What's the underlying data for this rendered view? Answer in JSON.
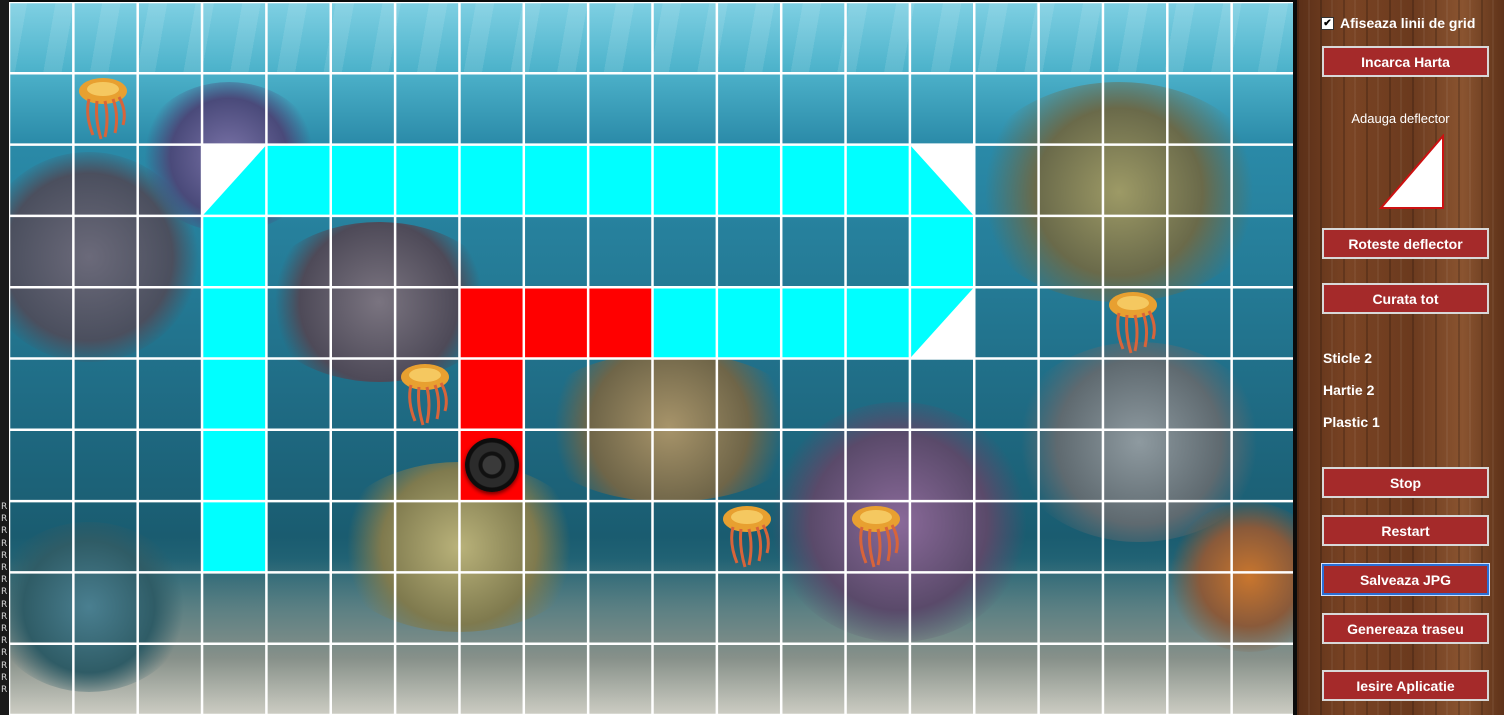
{
  "side_markers": [
    "R",
    "R",
    "R",
    "R",
    "R",
    "R",
    "R",
    "R",
    "R",
    "R",
    "R",
    "R",
    "R",
    "R",
    "R",
    "R"
  ],
  "board": {
    "grid_visible": true,
    "cols": 20,
    "rows": 10,
    "cells": [
      {
        "c": 3,
        "r": 2,
        "kind": "cyan-tri-br"
      },
      {
        "c": 4,
        "r": 2,
        "kind": "cyan"
      },
      {
        "c": 5,
        "r": 2,
        "kind": "cyan"
      },
      {
        "c": 6,
        "r": 2,
        "kind": "cyan"
      },
      {
        "c": 7,
        "r": 2,
        "kind": "cyan"
      },
      {
        "c": 8,
        "r": 2,
        "kind": "cyan"
      },
      {
        "c": 9,
        "r": 2,
        "kind": "cyan"
      },
      {
        "c": 10,
        "r": 2,
        "kind": "cyan"
      },
      {
        "c": 11,
        "r": 2,
        "kind": "cyan"
      },
      {
        "c": 12,
        "r": 2,
        "kind": "cyan"
      },
      {
        "c": 13,
        "r": 2,
        "kind": "cyan"
      },
      {
        "c": 14,
        "r": 2,
        "kind": "cyan-tri-bl"
      },
      {
        "c": 3,
        "r": 3,
        "kind": "cyan"
      },
      {
        "c": 14,
        "r": 3,
        "kind": "cyan"
      },
      {
        "c": 3,
        "r": 4,
        "kind": "cyan"
      },
      {
        "c": 7,
        "r": 4,
        "kind": "red"
      },
      {
        "c": 8,
        "r": 4,
        "kind": "red"
      },
      {
        "c": 9,
        "r": 4,
        "kind": "red"
      },
      {
        "c": 10,
        "r": 4,
        "kind": "cyan"
      },
      {
        "c": 11,
        "r": 4,
        "kind": "cyan"
      },
      {
        "c": 12,
        "r": 4,
        "kind": "cyan"
      },
      {
        "c": 13,
        "r": 4,
        "kind": "cyan"
      },
      {
        "c": 14,
        "r": 4,
        "kind": "cyan-tri-tl"
      },
      {
        "c": 3,
        "r": 5,
        "kind": "cyan"
      },
      {
        "c": 7,
        "r": 5,
        "kind": "red"
      },
      {
        "c": 3,
        "r": 6,
        "kind": "cyan"
      },
      {
        "c": 7,
        "r": 6,
        "kind": "red"
      },
      {
        "c": 3,
        "r": 7,
        "kind": "cyan"
      }
    ],
    "robot": {
      "c": 7,
      "r": 6
    },
    "jellyfish": [
      {
        "c": 1,
        "r": 1
      },
      {
        "c": 6,
        "r": 5
      },
      {
        "c": 11,
        "r": 7
      },
      {
        "c": 13,
        "r": 7
      },
      {
        "c": 17,
        "r": 4
      }
    ]
  },
  "panel": {
    "grid_checkbox_label": "Afiseaza linii de grid",
    "grid_checkbox_checked": "✔",
    "load_map": "Incarca Harta",
    "add_deflector_label": "Adauga deflector",
    "rotate_deflector": "Roteste deflector",
    "clear_all": "Curata tot",
    "stats": {
      "bottles": "Sticle 2",
      "paper": "Hartie 2",
      "plastic": "Plastic 1"
    },
    "stop": "Stop",
    "restart": "Restart",
    "save_jpg": "Salveaza JPG",
    "generate_path": "Genereaza traseu",
    "exit": "Iesire Aplicatie"
  },
  "colors": {
    "cyan": "#00ffff",
    "red": "#ff0000",
    "button": "#a52a2a",
    "white": "#ffffff"
  }
}
